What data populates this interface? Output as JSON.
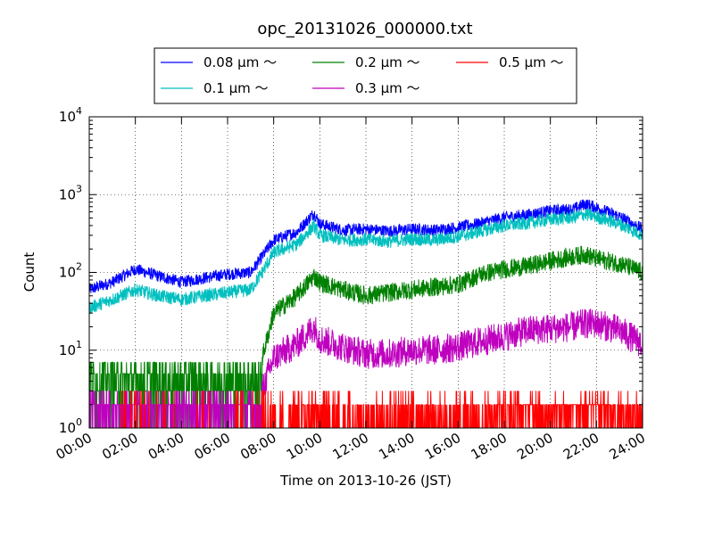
{
  "chart_data": {
    "type": "line",
    "title": "opc_20131026_000000.txt",
    "xlabel": "Time on 2013-10-26 (JST)",
    "ylabel": "Count",
    "yscale": "log",
    "ylim": [
      1,
      10000
    ],
    "xlim": [
      "00:00",
      "24:00"
    ],
    "grid": true,
    "legend_position": "top-center",
    "x_tick_labels": [
      "00:00",
      "02:00",
      "04:00",
      "06:00",
      "08:00",
      "10:00",
      "12:00",
      "14:00",
      "16:00",
      "18:00",
      "20:00",
      "22:00",
      "24:00"
    ],
    "y_tick_labels": [
      {
        "base": "10",
        "exp": "0"
      },
      {
        "base": "10",
        "exp": "1"
      },
      {
        "base": "10",
        "exp": "2"
      },
      {
        "base": "10",
        "exp": "3"
      },
      {
        "base": "10",
        "exp": "4"
      }
    ],
    "x": [
      "00:00",
      "01:00",
      "02:00",
      "03:00",
      "04:00",
      "05:00",
      "06:00",
      "07:00",
      "07:30",
      "08:00",
      "09:00",
      "09:45",
      "10:00",
      "11:00",
      "12:00",
      "13:00",
      "14:00",
      "15:00",
      "16:00",
      "17:00",
      "18:00",
      "19:00",
      "20:00",
      "21:00",
      "21:30",
      "22:00",
      "23:00",
      "24:00"
    ],
    "series": [
      {
        "name": "0.08 μm ～",
        "color": "#0000ff",
        "values": [
          60,
          75,
          110,
          90,
          75,
          85,
          95,
          100,
          160,
          260,
          330,
          580,
          420,
          350,
          360,
          340,
          360,
          350,
          380,
          430,
          510,
          550,
          620,
          650,
          760,
          680,
          520,
          360
        ]
      },
      {
        "name": "0.1 μm ～",
        "color": "#00bfbf",
        "values": [
          35,
          45,
          60,
          50,
          45,
          50,
          55,
          60,
          100,
          180,
          230,
          400,
          300,
          260,
          265,
          250,
          270,
          260,
          290,
          340,
          400,
          430,
          480,
          510,
          560,
          520,
          420,
          300
        ]
      },
      {
        "name": "0.2 μm ～",
        "color": "#008000",
        "values": [
          3,
          3,
          4,
          3.5,
          3.5,
          4,
          5,
          5.5,
          8,
          30,
          50,
          90,
          75,
          60,
          50,
          55,
          60,
          65,
          70,
          95,
          110,
          120,
          140,
          160,
          170,
          150,
          130,
          100
        ]
      },
      {
        "name": "0.3 μm ～",
        "color": "#bf00bf",
        "values": [
          1.5,
          1.5,
          1.7,
          1.6,
          1.6,
          1.7,
          2,
          2.2,
          3,
          8,
          12,
          20,
          14,
          11,
          9,
          9,
          10,
          10,
          11,
          13,
          15,
          18,
          19,
          20,
          22,
          22,
          18,
          12
        ]
      },
      {
        "name": "0.5 μm ～",
        "color": "#ff0000",
        "values": [
          1,
          1,
          1,
          1,
          1,
          1,
          1,
          1,
          1,
          1.2,
          1.3,
          1.5,
          1.4,
          1.3,
          1.3,
          1.3,
          1.3,
          1.3,
          1.3,
          1.4,
          1.5,
          1.6,
          1.6,
          1.8,
          1.8,
          1.7,
          1.5,
          1.3
        ]
      }
    ]
  }
}
